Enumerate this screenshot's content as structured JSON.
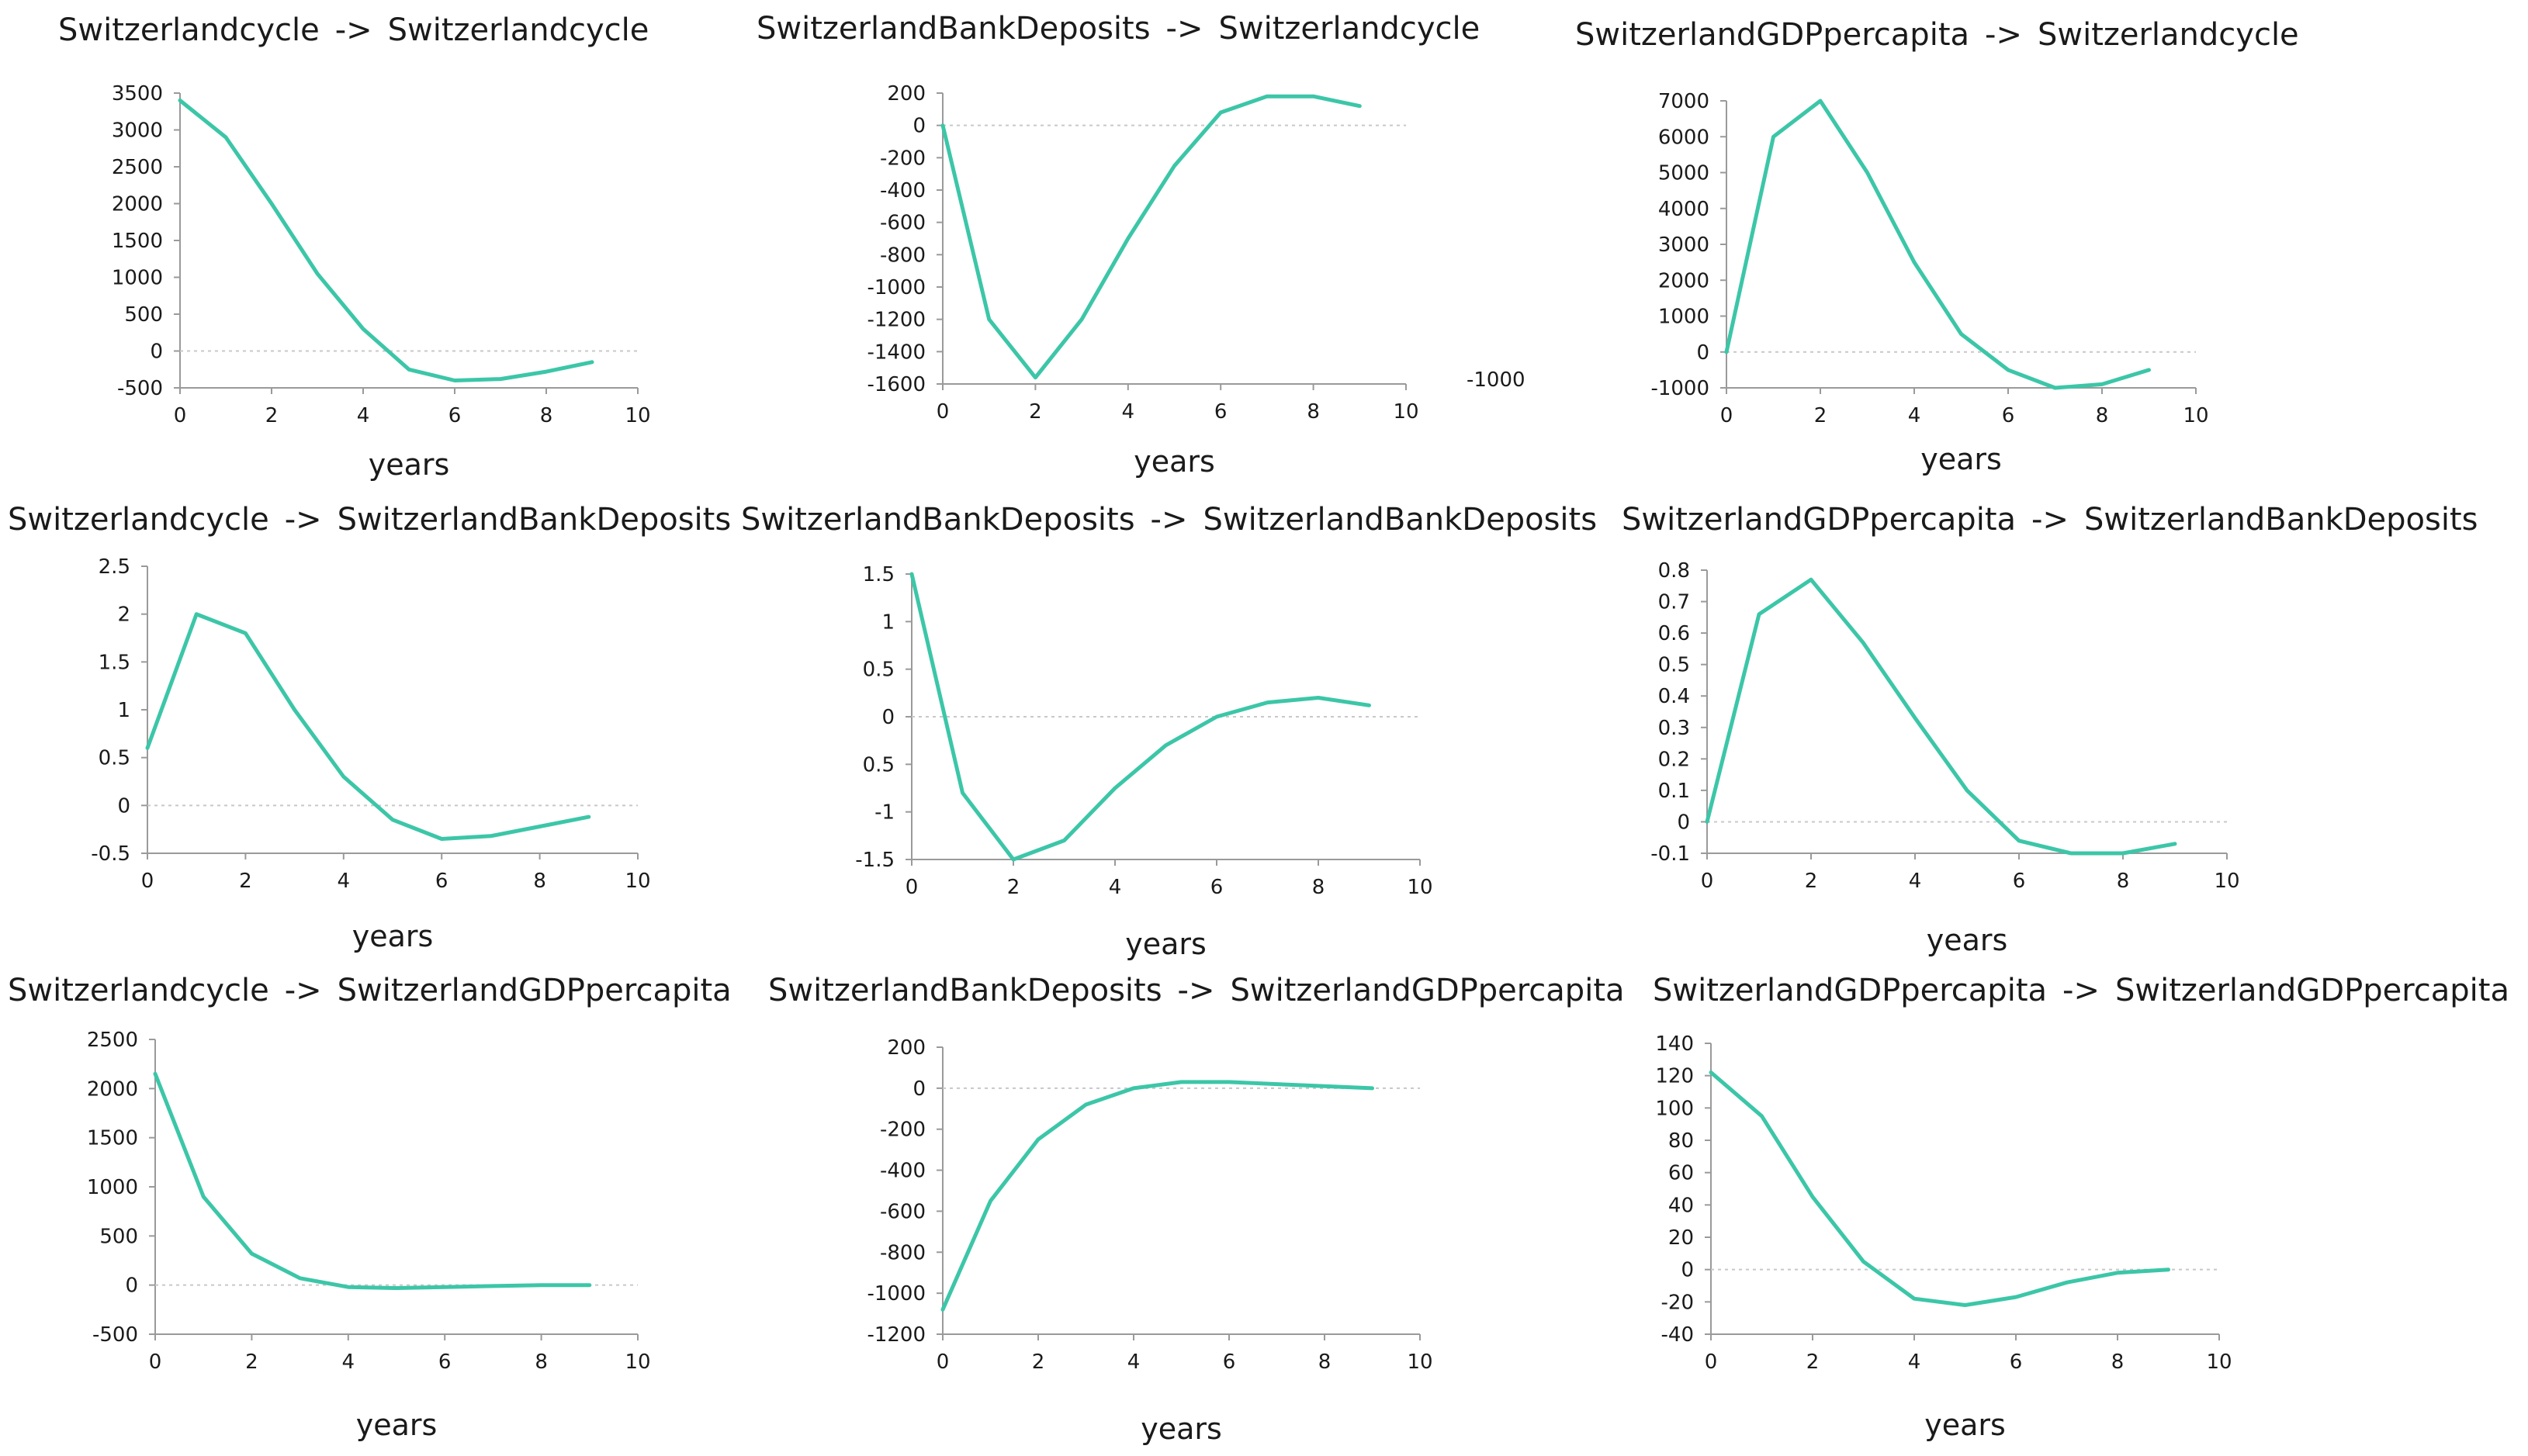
{
  "colors": {
    "line": "#3cc6a8",
    "axis": "#9a9a9a",
    "zero_line": "#c8c8c8"
  },
  "stray_label": "-1000",
  "chart_data": [
    {
      "type": "line",
      "title": "Switzerlandcycle -> Switzerlandcycle",
      "xlabel": "years",
      "ylabel": "",
      "xticks": [
        "0",
        "2",
        "4",
        "6",
        "8",
        "10"
      ],
      "yticks": [
        "3500",
        "3000",
        "2500",
        "2000",
        "1500",
        "1000",
        "500",
        "0",
        "-500"
      ],
      "xlim": [
        0,
        10
      ],
      "ylim": [
        -500,
        3500
      ],
      "zero_line": true,
      "series": [
        {
          "x": [
            0,
            1,
            2,
            3,
            4,
            5,
            6,
            7,
            8,
            9
          ],
          "y": [
            3400,
            2900,
            2000,
            1050,
            300,
            -250,
            -400,
            -380,
            -280,
            -150
          ]
        }
      ]
    },
    {
      "type": "line",
      "title": "SwitzerlandBankDeposits -> Switzerlandcycle",
      "xlabel": "years",
      "ylabel": "",
      "xticks": [
        "0",
        "2",
        "4",
        "6",
        "8",
        "10"
      ],
      "yticks": [
        "200",
        "0",
        "-200",
        "-400",
        "-600",
        "-800",
        "-1000",
        "-1200",
        "-1400",
        "-1600"
      ],
      "xlim": [
        0,
        10
      ],
      "ylim": [
        -1600,
        200
      ],
      "zero_line": true,
      "series": [
        {
          "x": [
            0,
            1,
            2,
            3,
            4,
            5,
            6,
            7,
            8,
            9
          ],
          "y": [
            0,
            -1200,
            -1560,
            -1200,
            -700,
            -250,
            80,
            180,
            180,
            120
          ]
        }
      ]
    },
    {
      "type": "line",
      "title": "SwitzerlandGDPpercapita -> Switzerlandcycle",
      "xlabel": "years",
      "ylabel": "",
      "xticks": [
        "0",
        "2",
        "4",
        "6",
        "8",
        "10"
      ],
      "yticks": [
        "7000",
        "6000",
        "5000",
        "4000",
        "3000",
        "2000",
        "1000",
        "0",
        "-1000"
      ],
      "xlim": [
        0,
        10
      ],
      "ylim": [
        -1000,
        7000
      ],
      "zero_line": true,
      "series": [
        {
          "x": [
            0,
            1,
            2,
            3,
            4,
            5,
            6,
            7,
            8,
            9
          ],
          "y": [
            0,
            6000,
            7000,
            5000,
            2500,
            500,
            -500,
            -1000,
            -900,
            -500
          ]
        }
      ]
    },
    {
      "type": "line",
      "title": "Switzerlandcycle -> SwitzerlandBankDeposits",
      "xlabel": "years",
      "ylabel": "",
      "xticks": [
        "0",
        "2",
        "4",
        "6",
        "8",
        "10"
      ],
      "yticks": [
        "2.5",
        "2",
        "1.5",
        "1",
        "0.5",
        "0",
        "-0.5"
      ],
      "xlim": [
        0,
        10
      ],
      "ylim": [
        -0.5,
        2.5
      ],
      "zero_line": true,
      "series": [
        {
          "x": [
            0,
            1,
            2,
            3,
            4,
            5,
            6,
            7,
            8,
            9
          ],
          "y": [
            0.6,
            2.0,
            1.8,
            1.0,
            0.3,
            -0.15,
            -0.35,
            -0.32,
            -0.22,
            -0.12
          ]
        }
      ]
    },
    {
      "type": "line",
      "title": "SwitzerlandBankDeposits -> SwitzerlandBankDeposits",
      "xlabel": "years",
      "ylabel": "",
      "xticks": [
        "0",
        "2",
        "4",
        "6",
        "8",
        "10"
      ],
      "yticks": [
        "1.5",
        "1",
        "0.5",
        "0",
        "0.5",
        "-1",
        "-1.5"
      ],
      "xlim": [
        0,
        10
      ],
      "ylim": [
        -1.5,
        1.5
      ],
      "zero_line": true,
      "series": [
        {
          "x": [
            0,
            1,
            2,
            3,
            4,
            5,
            6,
            7,
            8,
            9
          ],
          "y": [
            1.5,
            -0.8,
            -1.5,
            -1.3,
            -0.75,
            -0.3,
            0.0,
            0.15,
            0.2,
            0.12
          ]
        }
      ]
    },
    {
      "type": "line",
      "title": "SwitzerlandGDPpercapita -> SwitzerlandBankDeposits",
      "xlabel": "years",
      "ylabel": "",
      "xticks": [
        "0",
        "2",
        "4",
        "6",
        "8",
        "10"
      ],
      "yticks": [
        "0.8",
        "0.7",
        "0.6",
        "0.5",
        "0.4",
        "0.3",
        "0.2",
        "0.1",
        "0",
        "-0.1"
      ],
      "xlim": [
        0,
        10
      ],
      "ylim": [
        -0.1,
        0.8
      ],
      "zero_line": true,
      "series": [
        {
          "x": [
            0,
            1,
            2,
            3,
            4,
            5,
            6,
            7,
            8,
            9
          ],
          "y": [
            0,
            0.66,
            0.77,
            0.57,
            0.33,
            0.1,
            -0.06,
            -0.1,
            -0.1,
            -0.07
          ]
        }
      ]
    },
    {
      "type": "line",
      "title": "Switzerlandcycle -> SwitzerlandGDPpercapita",
      "xlabel": "years",
      "ylabel": "",
      "xticks": [
        "0",
        "2",
        "4",
        "6",
        "8",
        "10"
      ],
      "yticks": [
        "2500",
        "2000",
        "1500",
        "1000",
        "500",
        "0",
        "-500"
      ],
      "xlim": [
        0,
        10
      ],
      "ylim": [
        -500,
        2500
      ],
      "zero_line": true,
      "series": [
        {
          "x": [
            0,
            1,
            2,
            3,
            4,
            5,
            6,
            7,
            8,
            9
          ],
          "y": [
            2150,
            900,
            320,
            70,
            -20,
            -30,
            -20,
            -10,
            0,
            0
          ]
        }
      ]
    },
    {
      "type": "line",
      "title": "SwitzerlandBankDeposits -> SwitzerlandGDPpercapita",
      "xlabel": "years",
      "ylabel": "",
      "xticks": [
        "0",
        "2",
        "4",
        "6",
        "8",
        "10"
      ],
      "yticks": [
        "200",
        "0",
        "-200",
        "-400",
        "-600",
        "-800",
        "-1000",
        "-1200"
      ],
      "xlim": [
        0,
        10
      ],
      "ylim": [
        -1200,
        200
      ],
      "zero_line": true,
      "series": [
        {
          "x": [
            0,
            1,
            2,
            3,
            4,
            5,
            6,
            7,
            8,
            9
          ],
          "y": [
            -1080,
            -550,
            -250,
            -80,
            0,
            30,
            30,
            20,
            10,
            0
          ]
        }
      ]
    },
    {
      "type": "line",
      "title": "SwitzerlandGDPpercapita -> SwitzerlandGDPpercapita",
      "xlabel": "years",
      "ylabel": "",
      "xticks": [
        "0",
        "2",
        "4",
        "6",
        "8",
        "10"
      ],
      "yticks": [
        "140",
        "120",
        "100",
        "80",
        "60",
        "40",
        "20",
        "0",
        "-20",
        "-40"
      ],
      "xlim": [
        0,
        10
      ],
      "ylim": [
        -40,
        140
      ],
      "zero_line": true,
      "series": [
        {
          "x": [
            0,
            1,
            2,
            3,
            4,
            5,
            6,
            7,
            8,
            9
          ],
          "y": [
            122,
            95,
            45,
            5,
            -18,
            -22,
            -17,
            -8,
            -2,
            0
          ]
        }
      ]
    }
  ]
}
